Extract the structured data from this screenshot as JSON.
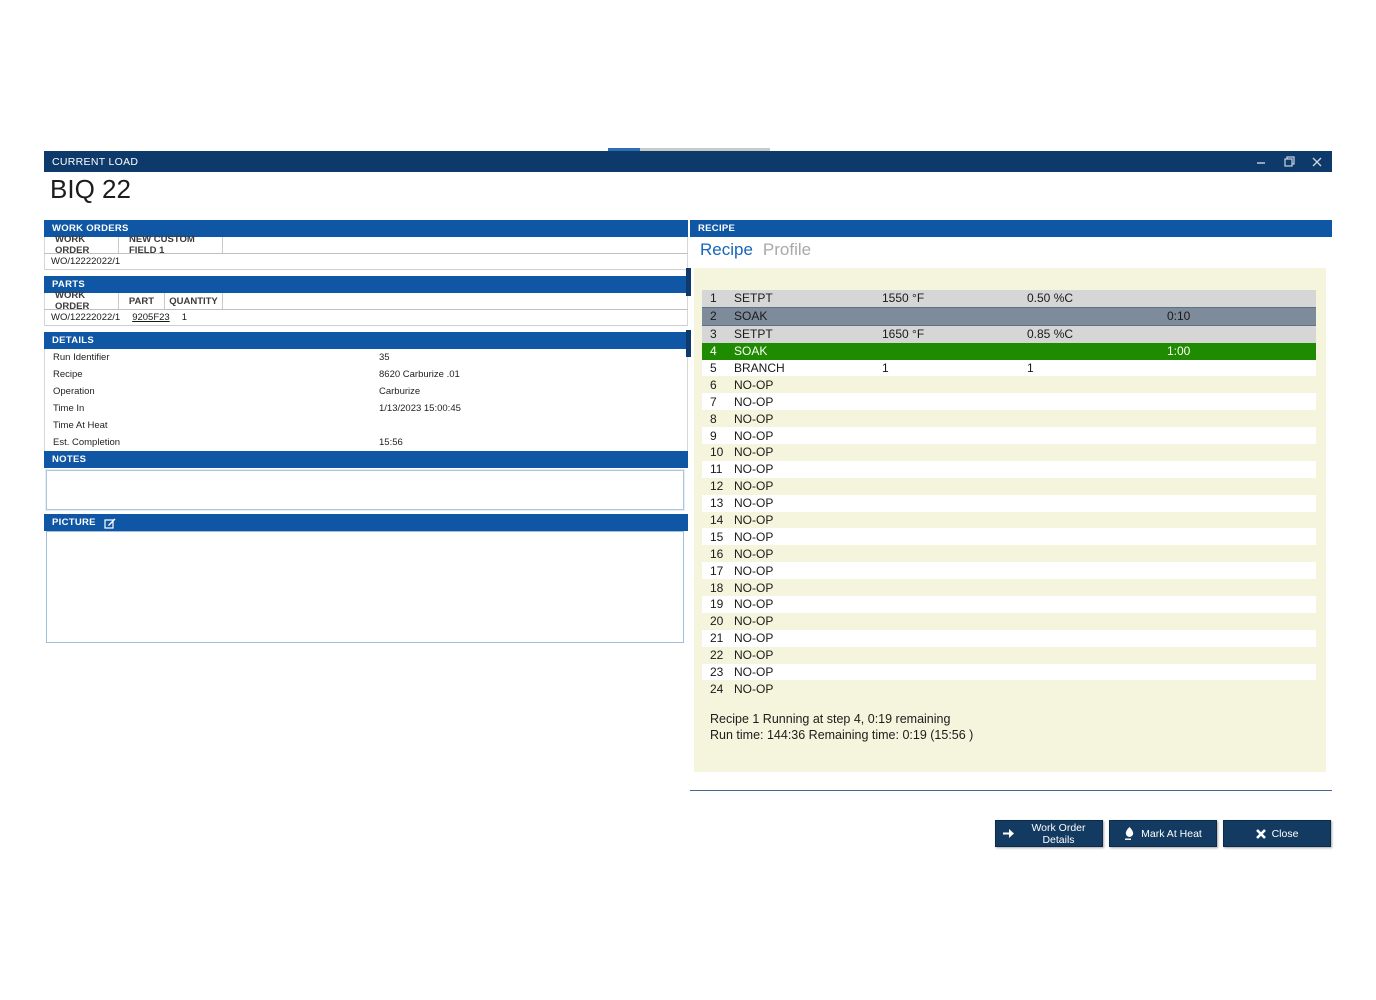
{
  "colors": {
    "titlebar": "#0d3a6b",
    "section_header": "#0f57a4",
    "accent_link": "#0e64c2",
    "tab_active": "#1766b8",
    "panel_cream": "#f5f4dc",
    "row_done_soak": "#7d8b9b",
    "row_active": "#1e8b00",
    "button_bg": "#133a60"
  },
  "window": {
    "title": "CURRENT LOAD",
    "controls": {
      "minimize": "minimize",
      "restore": "restore",
      "close": "close"
    }
  },
  "page_title": "BIQ 22",
  "work_orders": {
    "header": "WORK ORDERS",
    "columns": [
      "WORK ORDER",
      "NEW CUSTOM FIELD 1"
    ],
    "rows": [
      {
        "work_order": "WO/12222022/1",
        "new_custom_field_1": ""
      }
    ]
  },
  "parts": {
    "header": "PARTS",
    "columns": [
      "WORK ORDER",
      "PART",
      "QUANTITY"
    ],
    "rows": [
      {
        "work_order": "WO/12222022/1",
        "part": "9205F23",
        "quantity": "1"
      }
    ]
  },
  "details": {
    "header": "DETAILS",
    "fields": [
      {
        "label": "Run Identifier",
        "value": "35"
      },
      {
        "label": "Recipe",
        "value": "8620 Carburize .01"
      },
      {
        "label": "Operation",
        "value": "Carburize"
      },
      {
        "label": "Time In",
        "value": "1/13/2023 15:00:45"
      },
      {
        "label": "Time At Heat",
        "value": ""
      },
      {
        "label": "Est. Completion",
        "value": "15:56"
      }
    ]
  },
  "notes": {
    "header": "NOTES",
    "value": ""
  },
  "picture": {
    "header": "PICTURE",
    "edit_icon": "edit-picture-icon"
  },
  "recipe": {
    "section_header": "RECIPE",
    "tabs": [
      {
        "label": "Recipe",
        "active": true
      },
      {
        "label": "Profile",
        "active": false
      }
    ],
    "steps": [
      {
        "num": "1",
        "op": "SETPT",
        "p1": "1550 °F",
        "p2": "0.50 %C",
        "p3": "",
        "state": "done"
      },
      {
        "num": "2",
        "op": "SOAK",
        "p1": "",
        "p2": "",
        "p3": "0:10",
        "state": "done-soak"
      },
      {
        "num": "3",
        "op": "SETPT",
        "p1": "1650 °F",
        "p2": "0.85 %C",
        "p3": "",
        "state": "done"
      },
      {
        "num": "4",
        "op": "SOAK",
        "p1": "",
        "p2": "",
        "p3": "1:00",
        "state": "active"
      },
      {
        "num": "5",
        "op": "BRANCH",
        "p1": "1",
        "p2": "1",
        "p3": "",
        "state": "pending"
      },
      {
        "num": "6",
        "op": "NO-OP",
        "p1": "",
        "p2": "",
        "p3": "",
        "state": "pending"
      },
      {
        "num": "7",
        "op": "NO-OP",
        "p1": "",
        "p2": "",
        "p3": "",
        "state": "pending"
      },
      {
        "num": "8",
        "op": "NO-OP",
        "p1": "",
        "p2": "",
        "p3": "",
        "state": "pending"
      },
      {
        "num": "9",
        "op": "NO-OP",
        "p1": "",
        "p2": "",
        "p3": "",
        "state": "pending"
      },
      {
        "num": "10",
        "op": "NO-OP",
        "p1": "",
        "p2": "",
        "p3": "",
        "state": "pending"
      },
      {
        "num": "11",
        "op": "NO-OP",
        "p1": "",
        "p2": "",
        "p3": "",
        "state": "pending"
      },
      {
        "num": "12",
        "op": "NO-OP",
        "p1": "",
        "p2": "",
        "p3": "",
        "state": "pending"
      },
      {
        "num": "13",
        "op": "NO-OP",
        "p1": "",
        "p2": "",
        "p3": "",
        "state": "pending"
      },
      {
        "num": "14",
        "op": "NO-OP",
        "p1": "",
        "p2": "",
        "p3": "",
        "state": "pending"
      },
      {
        "num": "15",
        "op": "NO-OP",
        "p1": "",
        "p2": "",
        "p3": "",
        "state": "pending"
      },
      {
        "num": "16",
        "op": "NO-OP",
        "p1": "",
        "p2": "",
        "p3": "",
        "state": "pending"
      },
      {
        "num": "17",
        "op": "NO-OP",
        "p1": "",
        "p2": "",
        "p3": "",
        "state": "pending"
      },
      {
        "num": "18",
        "op": "NO-OP",
        "p1": "",
        "p2": "",
        "p3": "",
        "state": "pending"
      },
      {
        "num": "19",
        "op": "NO-OP",
        "p1": "",
        "p2": "",
        "p3": "",
        "state": "pending"
      },
      {
        "num": "20",
        "op": "NO-OP",
        "p1": "",
        "p2": "",
        "p3": "",
        "state": "pending"
      },
      {
        "num": "21",
        "op": "NO-OP",
        "p1": "",
        "p2": "",
        "p3": "",
        "state": "pending"
      },
      {
        "num": "22",
        "op": "NO-OP",
        "p1": "",
        "p2": "",
        "p3": "",
        "state": "pending"
      },
      {
        "num": "23",
        "op": "NO-OP",
        "p1": "",
        "p2": "",
        "p3": "",
        "state": "pending"
      },
      {
        "num": "24",
        "op": "NO-OP",
        "p1": "",
        "p2": "",
        "p3": "",
        "state": "pending"
      }
    ],
    "status_line1": "Recipe 1 Running at step 4, 0:19 remaining",
    "status_line2": "Run time: 144:36 Remaining time: 0:19 (15:56 )"
  },
  "buttons": [
    {
      "label": "Work Order Details",
      "icon": "arrow-right-icon"
    },
    {
      "label": "Mark At Heat",
      "icon": "flame-icon"
    },
    {
      "label": "Close",
      "icon": "x-icon"
    }
  ]
}
